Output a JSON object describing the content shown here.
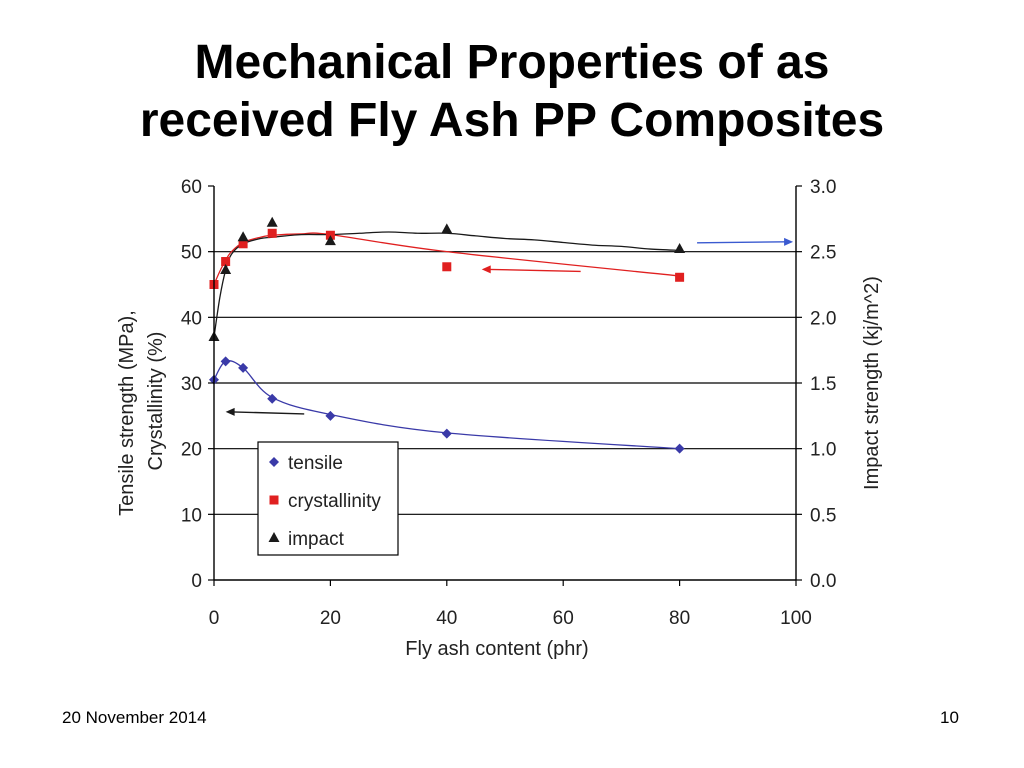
{
  "slide": {
    "title_line1": "Mechanical Properties of as",
    "title_line2": "received Fly Ash PP Composites",
    "date": "20 November 2014",
    "page_number": "10"
  },
  "chart_data": {
    "type": "scatter",
    "title": "",
    "xlabel": "Fly ash content (phr)",
    "ylabel_line1": "Tensile strength (MPa),",
    "ylabel_line2": "Crystallinity (%)",
    "y2label": "Impact strength (kj/m^2)",
    "xlim": [
      0,
      100
    ],
    "ylim": [
      0,
      60
    ],
    "y2lim": [
      0.0,
      3.0
    ],
    "xticks": [
      "0",
      "20",
      "40",
      "60",
      "80",
      "100"
    ],
    "yticks": [
      "0",
      "10",
      "20",
      "30",
      "40",
      "50",
      "60"
    ],
    "y2ticks": [
      "0.0",
      "0.5",
      "1.0",
      "1.5",
      "2.0",
      "2.5",
      "3.0"
    ],
    "grid": "horizontal",
    "legend_position": "lower-left",
    "series": [
      {
        "name": "tensile",
        "axis": "left",
        "marker": "diamond",
        "color": "#3a3aa8",
        "x": [
          0,
          2,
          5,
          10,
          20,
          40,
          80
        ],
        "y": [
          30.5,
          33.3,
          32.3,
          27.6,
          25.0,
          22.3,
          20.0
        ],
        "curve_x": [
          0,
          2,
          5,
          10,
          20,
          40,
          80
        ],
        "curve_y": [
          30.5,
          33.3,
          32.3,
          27.8,
          25.2,
          22.4,
          20.0
        ]
      },
      {
        "name": "crystallinity",
        "axis": "left",
        "marker": "square",
        "color": "#e02020",
        "x": [
          0,
          2,
          5,
          10,
          20,
          40,
          80
        ],
        "y": [
          45.0,
          48.5,
          51.2,
          52.8,
          52.5,
          47.7,
          46.1
        ],
        "curve_x": [
          0,
          1,
          2,
          3,
          5,
          8,
          10,
          15,
          20,
          40,
          80
        ],
        "curve_y": [
          45.0,
          47.0,
          48.7,
          50.0,
          51.4,
          52.2,
          52.5,
          52.7,
          52.6,
          50.0,
          46.3
        ]
      },
      {
        "name": "impact",
        "axis": "right",
        "marker": "triangle",
        "color": "#1a1a1a",
        "x": [
          0,
          2,
          5,
          10,
          20,
          40,
          80
        ],
        "y": [
          1.85,
          2.36,
          2.61,
          2.72,
          2.58,
          2.67,
          2.52
        ],
        "curve_x": [
          0,
          1,
          2,
          3,
          5,
          8,
          10,
          15,
          20,
          25,
          30,
          35,
          40,
          45,
          50,
          55,
          60,
          65,
          70,
          75,
          80
        ],
        "curve_y": [
          1.85,
          2.15,
          2.36,
          2.48,
          2.56,
          2.6,
          2.61,
          2.63,
          2.63,
          2.64,
          2.65,
          2.64,
          2.64,
          2.62,
          2.6,
          2.59,
          2.57,
          2.55,
          2.54,
          2.52,
          2.51
        ]
      }
    ],
    "axis_arrows": [
      {
        "series": "tensile",
        "direction": "left",
        "x_from": 15.5,
        "x_to": 2,
        "y": 25.6,
        "color": "#1a1a1a"
      },
      {
        "series": "crystallinity",
        "direction": "left",
        "x_from": 63,
        "x_to": 46,
        "y": 47.3,
        "color": "#e02020"
      },
      {
        "series": "impact",
        "direction": "right",
        "x_from": 83,
        "x_to": 99.5,
        "y": 51.5,
        "color": "#3a5ad0"
      }
    ]
  }
}
